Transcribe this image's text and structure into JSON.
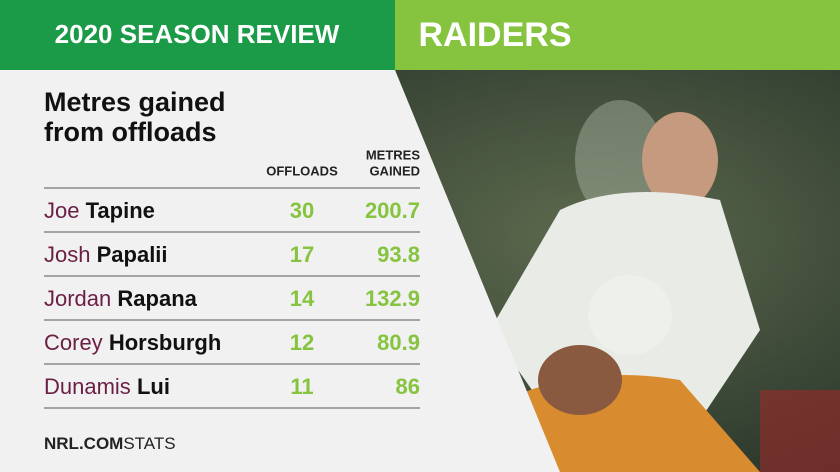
{
  "header": {
    "left": "2020 SEASON REVIEW",
    "right": "RAIDERS"
  },
  "title_lines": [
    "Metres gained",
    "from offloads"
  ],
  "columns": {
    "offloads": "OFFLOADS",
    "metres": [
      "METRES",
      "GAINED"
    ]
  },
  "table": {
    "rows": [
      {
        "first": "Joe",
        "last": "Tapine",
        "offloads": 30,
        "metres": 200.7
      },
      {
        "first": "Josh",
        "last": "Papalii",
        "offloads": 17,
        "metres": 93.8
      },
      {
        "first": "Jordan",
        "last": "Rapana",
        "offloads": 14,
        "metres": 132.9
      },
      {
        "first": "Corey",
        "last": "Horsburgh",
        "offloads": 12,
        "metres": 80.9
      },
      {
        "first": "Dunamis",
        "last": "Lui",
        "offloads": 11,
        "metres": 86
      }
    ]
  },
  "footer": {
    "brand": "NRL.COM",
    "section": "STATS"
  }
}
